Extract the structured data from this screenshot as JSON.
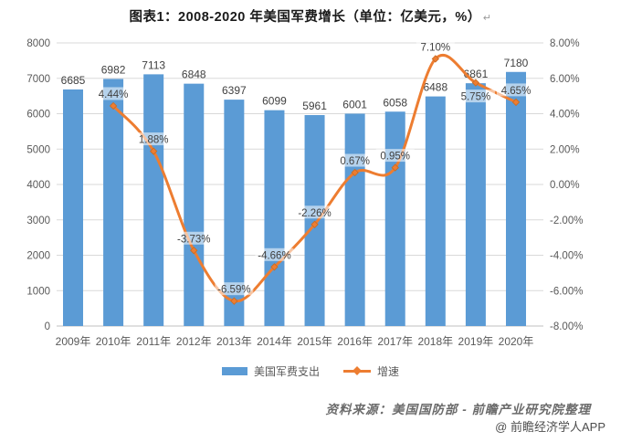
{
  "title": {
    "text": "图表1：2008-2020 年美国军费增长（单位：亿美元，%）",
    "mark": "↵"
  },
  "chart_data": {
    "type": "bar",
    "subtype": "bar-line-combo",
    "categories": [
      "2009年",
      "2010年",
      "2011年",
      "2012年",
      "2013年",
      "2014年",
      "2015年",
      "2016年",
      "2017年",
      "2018年",
      "2019年",
      "2020年"
    ],
    "series": [
      {
        "name": "美国军费支出",
        "type": "bar",
        "axis": "left",
        "values": [
          6685,
          6982,
          7113,
          6848,
          6397,
          6099,
          5961,
          6001,
          6058,
          6488,
          6861,
          7180
        ],
        "labels": [
          "6685",
          "6982",
          "7113",
          "6848",
          "6397",
          "6099",
          "5961",
          "6001",
          "6058",
          "6488",
          "6861",
          "7180"
        ],
        "color": "#5B9BD5"
      },
      {
        "name": "增速",
        "type": "line",
        "axis": "right",
        "values": [
          null,
          4.44,
          1.88,
          -3.73,
          -6.59,
          -4.66,
          -2.26,
          0.67,
          0.95,
          7.1,
          5.75,
          4.65
        ],
        "labels": [
          "",
          "4.44%",
          "1.88%",
          "-3.73%",
          "-6.59%",
          "-4.66%",
          "-2.26%",
          "0.67%",
          "0.95%",
          "7.10%",
          "5.75%",
          "4.65%"
        ],
        "label_side": [
          "above",
          "above",
          "above",
          "above",
          "above",
          "above",
          "above",
          "above",
          "above",
          "above",
          "below",
          "above"
        ],
        "color": "#ED7D31"
      }
    ],
    "left_axis": {
      "min": 0,
      "max": 8000,
      "step": 1000,
      "ticks": [
        "8000",
        "7000",
        "6000",
        "5000",
        "4000",
        "3000",
        "2000",
        "1000",
        "0"
      ]
    },
    "right_axis": {
      "min": -8,
      "max": 8,
      "step": 2,
      "ticks": [
        "8.00%",
        "6.00%",
        "4.00%",
        "2.00%",
        "0.00%",
        "-2.00%",
        "-4.00%",
        "-6.00%",
        "-8.00%"
      ]
    },
    "grid": true,
    "legend_position": "bottom",
    "title": "图表1：2008-2020 年美国军费增长（单位：亿美元，%）"
  },
  "legend": {
    "items": [
      {
        "label": "美国军费支出",
        "swatch": "bar"
      },
      {
        "label": "增速",
        "swatch": "line"
      }
    ]
  },
  "footer": {
    "source": "资料来源：美国国防部 - 前瞻产业研究院整理",
    "watermark": "@ 前瞻经济学人APP"
  },
  "colors": {
    "bar": "#5B9BD5",
    "line": "#ED7D31",
    "gridline": "#D9D9D9",
    "axis_line": "#BFBFBF",
    "axis_text": "#595959",
    "data_label": "#404040"
  }
}
